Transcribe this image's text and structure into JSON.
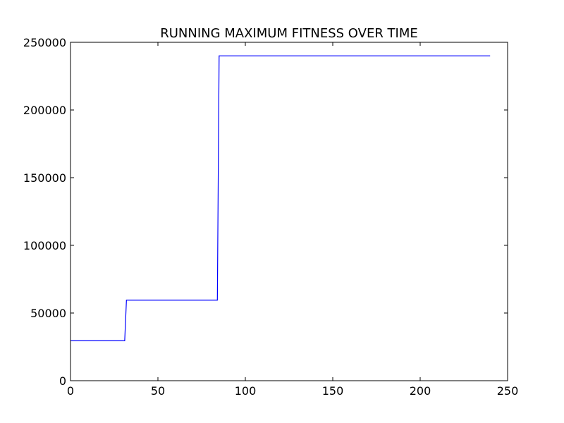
{
  "chart_data": {
    "type": "line",
    "title": "RUNNING MAXIMUM FITNESS OVER TIME",
    "xlabel": "",
    "ylabel": "",
    "xlim": [
      0,
      250
    ],
    "ylim": [
      0,
      250000
    ],
    "x_ticks": [
      0,
      50,
      100,
      150,
      200,
      250
    ],
    "y_ticks": [
      0,
      50000,
      100000,
      150000,
      200000,
      250000
    ],
    "x_tick_labels": [
      "0",
      "50",
      "100",
      "150",
      "200",
      "250"
    ],
    "y_tick_labels": [
      "0",
      "50000",
      "100000",
      "150000",
      "200000",
      "250000"
    ],
    "grid": false,
    "legend": "none",
    "series": [
      {
        "color": "#0000ff",
        "x": [
          0,
          31,
          32,
          84,
          85,
          240
        ],
        "y": [
          29500,
          29500,
          59500,
          59500,
          240000,
          240000
        ]
      }
    ]
  }
}
